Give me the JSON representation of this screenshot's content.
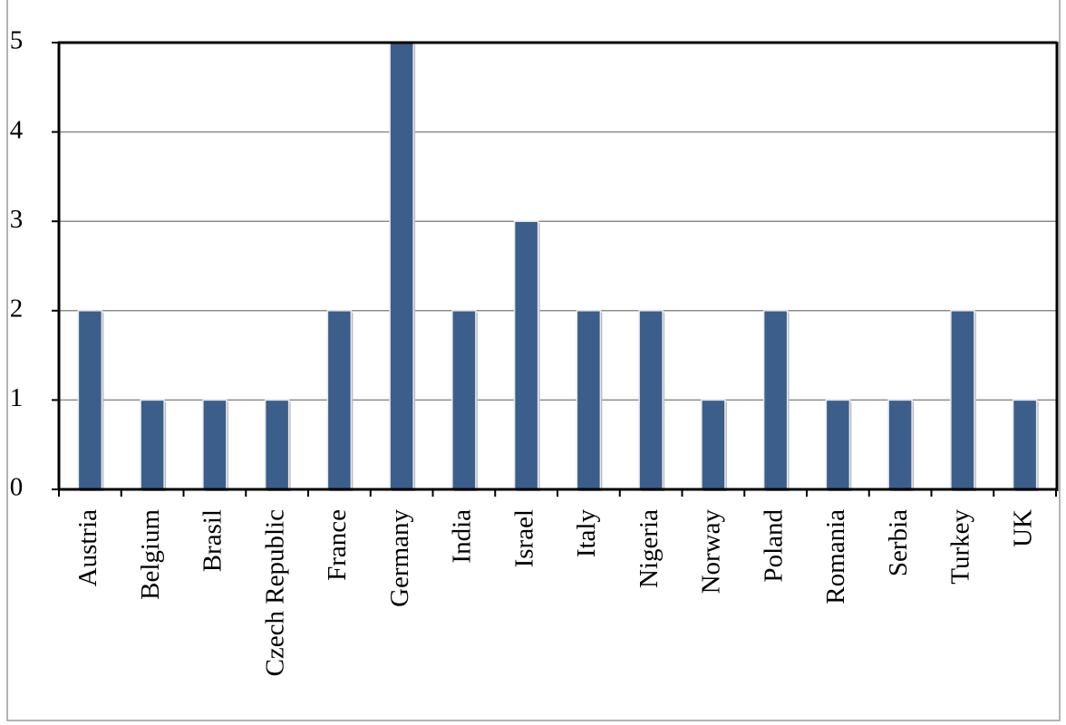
{
  "chart_data": {
    "type": "bar",
    "categories": [
      "Austria",
      "Belgium",
      "Brasil",
      "Czech Republic",
      "France",
      "Germany",
      "India",
      "Israel",
      "Italy",
      "Nigeria",
      "Norway",
      "Poland",
      "Romania",
      "Serbia",
      "Turkey",
      "UK"
    ],
    "values": [
      2,
      1,
      1,
      1,
      2,
      5,
      2,
      3,
      2,
      2,
      1,
      2,
      1,
      1,
      2,
      1
    ],
    "color": "#3b5e8b",
    "ylim": [
      0,
      5
    ],
    "yticks": [
      0,
      1,
      2,
      3,
      4,
      5
    ],
    "grid": true
  }
}
